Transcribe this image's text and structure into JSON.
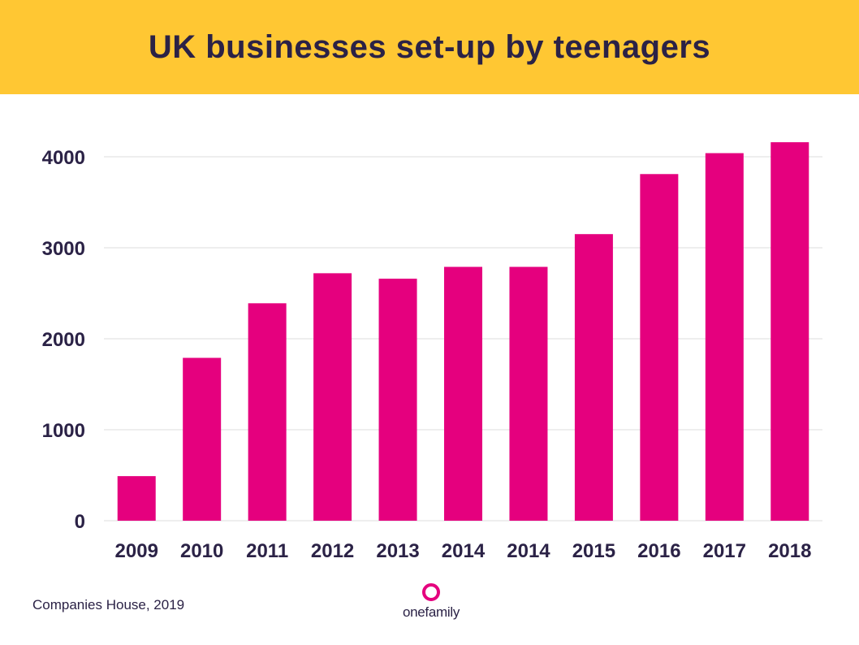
{
  "colors": {
    "header_bg": "#ffc733",
    "bar": "#e5007e",
    "text": "#2b2246",
    "grid": "#dcdcdc"
  },
  "header": {
    "title": "UK businesses set-up by teenagers"
  },
  "footer": {
    "source": "Companies House, 2019",
    "logo_text": "onefamily",
    "logo_icon": "ring-icon"
  },
  "chart_data": {
    "type": "bar",
    "title": "UK businesses set-up by teenagers",
    "xlabel": "",
    "ylabel": "",
    "categories": [
      "2009",
      "2010",
      "2011",
      "2012",
      "2013",
      "2014",
      "2014",
      "2015",
      "2016",
      "2017",
      "2018"
    ],
    "values": [
      490,
      1790,
      2390,
      2720,
      2660,
      2790,
      2790,
      3150,
      3810,
      4040,
      4160
    ],
    "ylim": [
      0,
      4000
    ],
    "yticks": [
      "0",
      "1000",
      "2000",
      "3000",
      "4000"
    ],
    "grid": true,
    "legend": "none"
  }
}
